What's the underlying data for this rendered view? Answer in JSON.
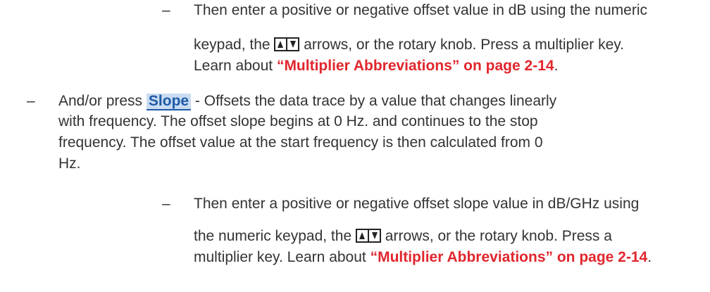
{
  "items": [
    {
      "bullet": "–",
      "lines": [
        [
          "Then enter a positive or negative offset value in dB using the numeric"
        ],
        [
          "keypad, the ",
          " arrows, or the rotary knob. Press a multiplier key."
        ],
        [
          "Learn about ",
          "“Multiplier Abbreviations” on page 2-14",
          "."
        ]
      ]
    },
    {
      "bullet": "–",
      "lines": [
        [
          "And/or press ",
          "Slope",
          " - Offsets the data trace by a value that changes linearly"
        ],
        [
          "with frequency. The offset slope begins at 0 Hz. and continues to the stop"
        ],
        [
          "frequency. The offset value at the start frequency is then calculated from 0"
        ],
        [
          "Hz."
        ]
      ]
    },
    {
      "bullet": "–",
      "lines": [
        [
          "Then enter a positive or negative offset slope value in dB/GHz using"
        ],
        [
          "the numeric keypad, the ",
          " arrows, or the rotary knob. Press a"
        ],
        [
          "multiplier key. Learn about ",
          "“Multiplier Abbreviations” on page 2-14",
          "."
        ]
      ]
    }
  ]
}
